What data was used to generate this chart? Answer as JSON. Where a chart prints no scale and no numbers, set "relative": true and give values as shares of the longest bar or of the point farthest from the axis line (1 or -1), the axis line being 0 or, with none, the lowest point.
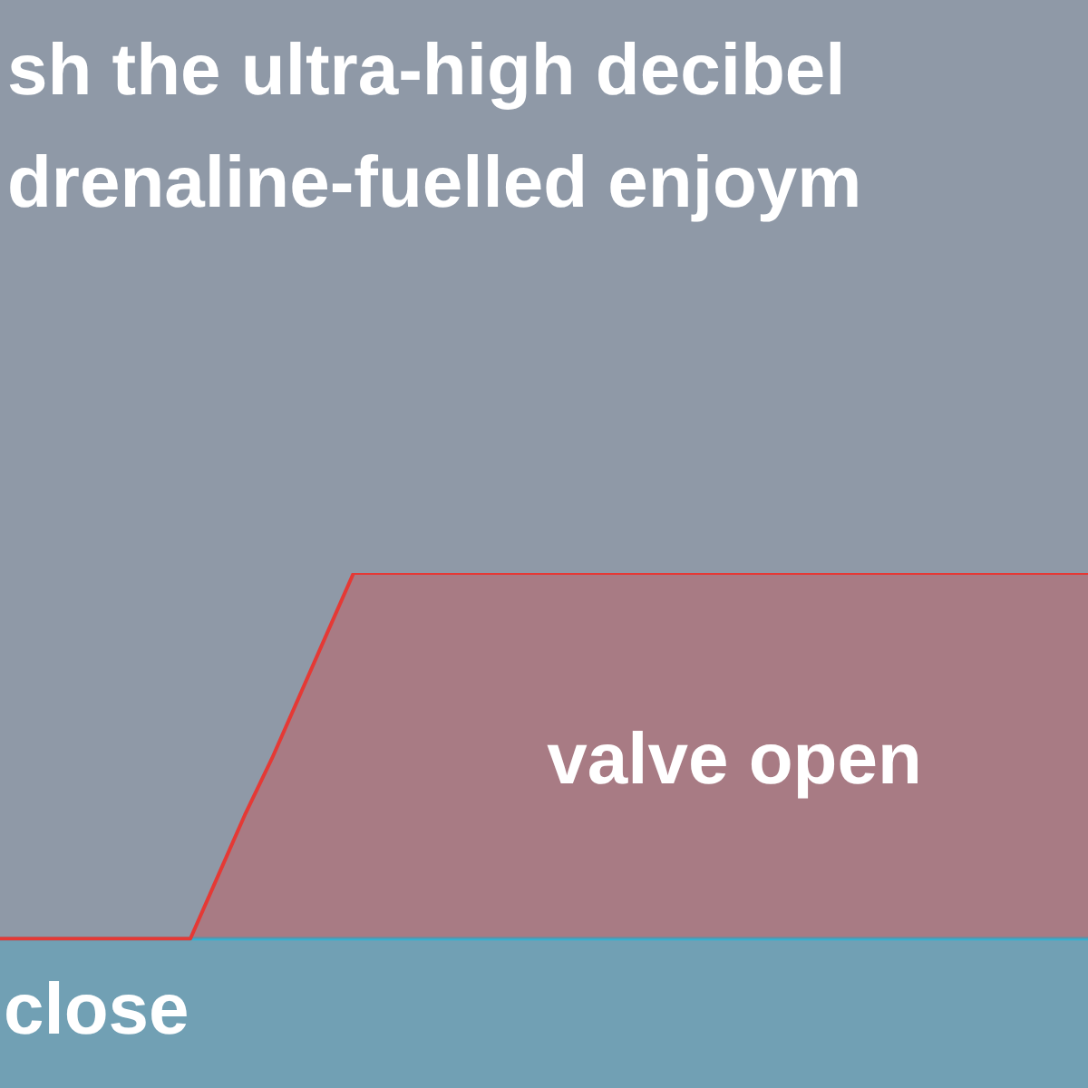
{
  "chart_data": {
    "type": "area",
    "title": "sh the ultra-high decibel\ndrenaline-fuelled enjoym",
    "relative": true,
    "legend": false,
    "categories": [
      null,
      null,
      null,
      null,
      null,
      null,
      null,
      null,
      null,
      null,
      null,
      null,
      null,
      null,
      null,
      null,
      null,
      null,
      null,
      null,
      null,
      null,
      null,
      null,
      null,
      null,
      null,
      null,
      null,
      null,
      null,
      null,
      null,
      null,
      null,
      null,
      null,
      null,
      null,
      null,
      null
    ],
    "series": [
      {
        "name": "valve open",
        "color": "#e53935",
        "values": [
          0.29,
          0.29,
          0.29,
          0.29,
          0.29,
          0.29,
          0.29,
          0.29,
          0.41,
          0.53,
          0.64,
          0.76,
          0.88,
          1,
          1,
          1,
          1,
          1,
          1,
          1,
          1,
          1,
          1,
          1,
          1,
          1,
          1,
          1,
          1,
          1,
          1,
          1,
          1,
          1,
          1,
          1,
          1,
          1,
          1,
          1,
          1
        ]
      },
      {
        "name": "close",
        "color": "#2fb3d3",
        "values": [
          0.29,
          0.29,
          0.29,
          0.29,
          0.29,
          0.29,
          0.29,
          0.29,
          0.29,
          0.29,
          0.29,
          0.29,
          0.29,
          0.29,
          0.29,
          0.29,
          0.29,
          0.29,
          0.29,
          0.29,
          0.29,
          0.29,
          0.29,
          0.29,
          0.29,
          0.29,
          0.29,
          0.29,
          0.29,
          0.29,
          0.29,
          0.29,
          0.29,
          0.29,
          0.29,
          0.29,
          0.29,
          0.29,
          0.29,
          0.29,
          0.29
        ]
      }
    ]
  }
}
